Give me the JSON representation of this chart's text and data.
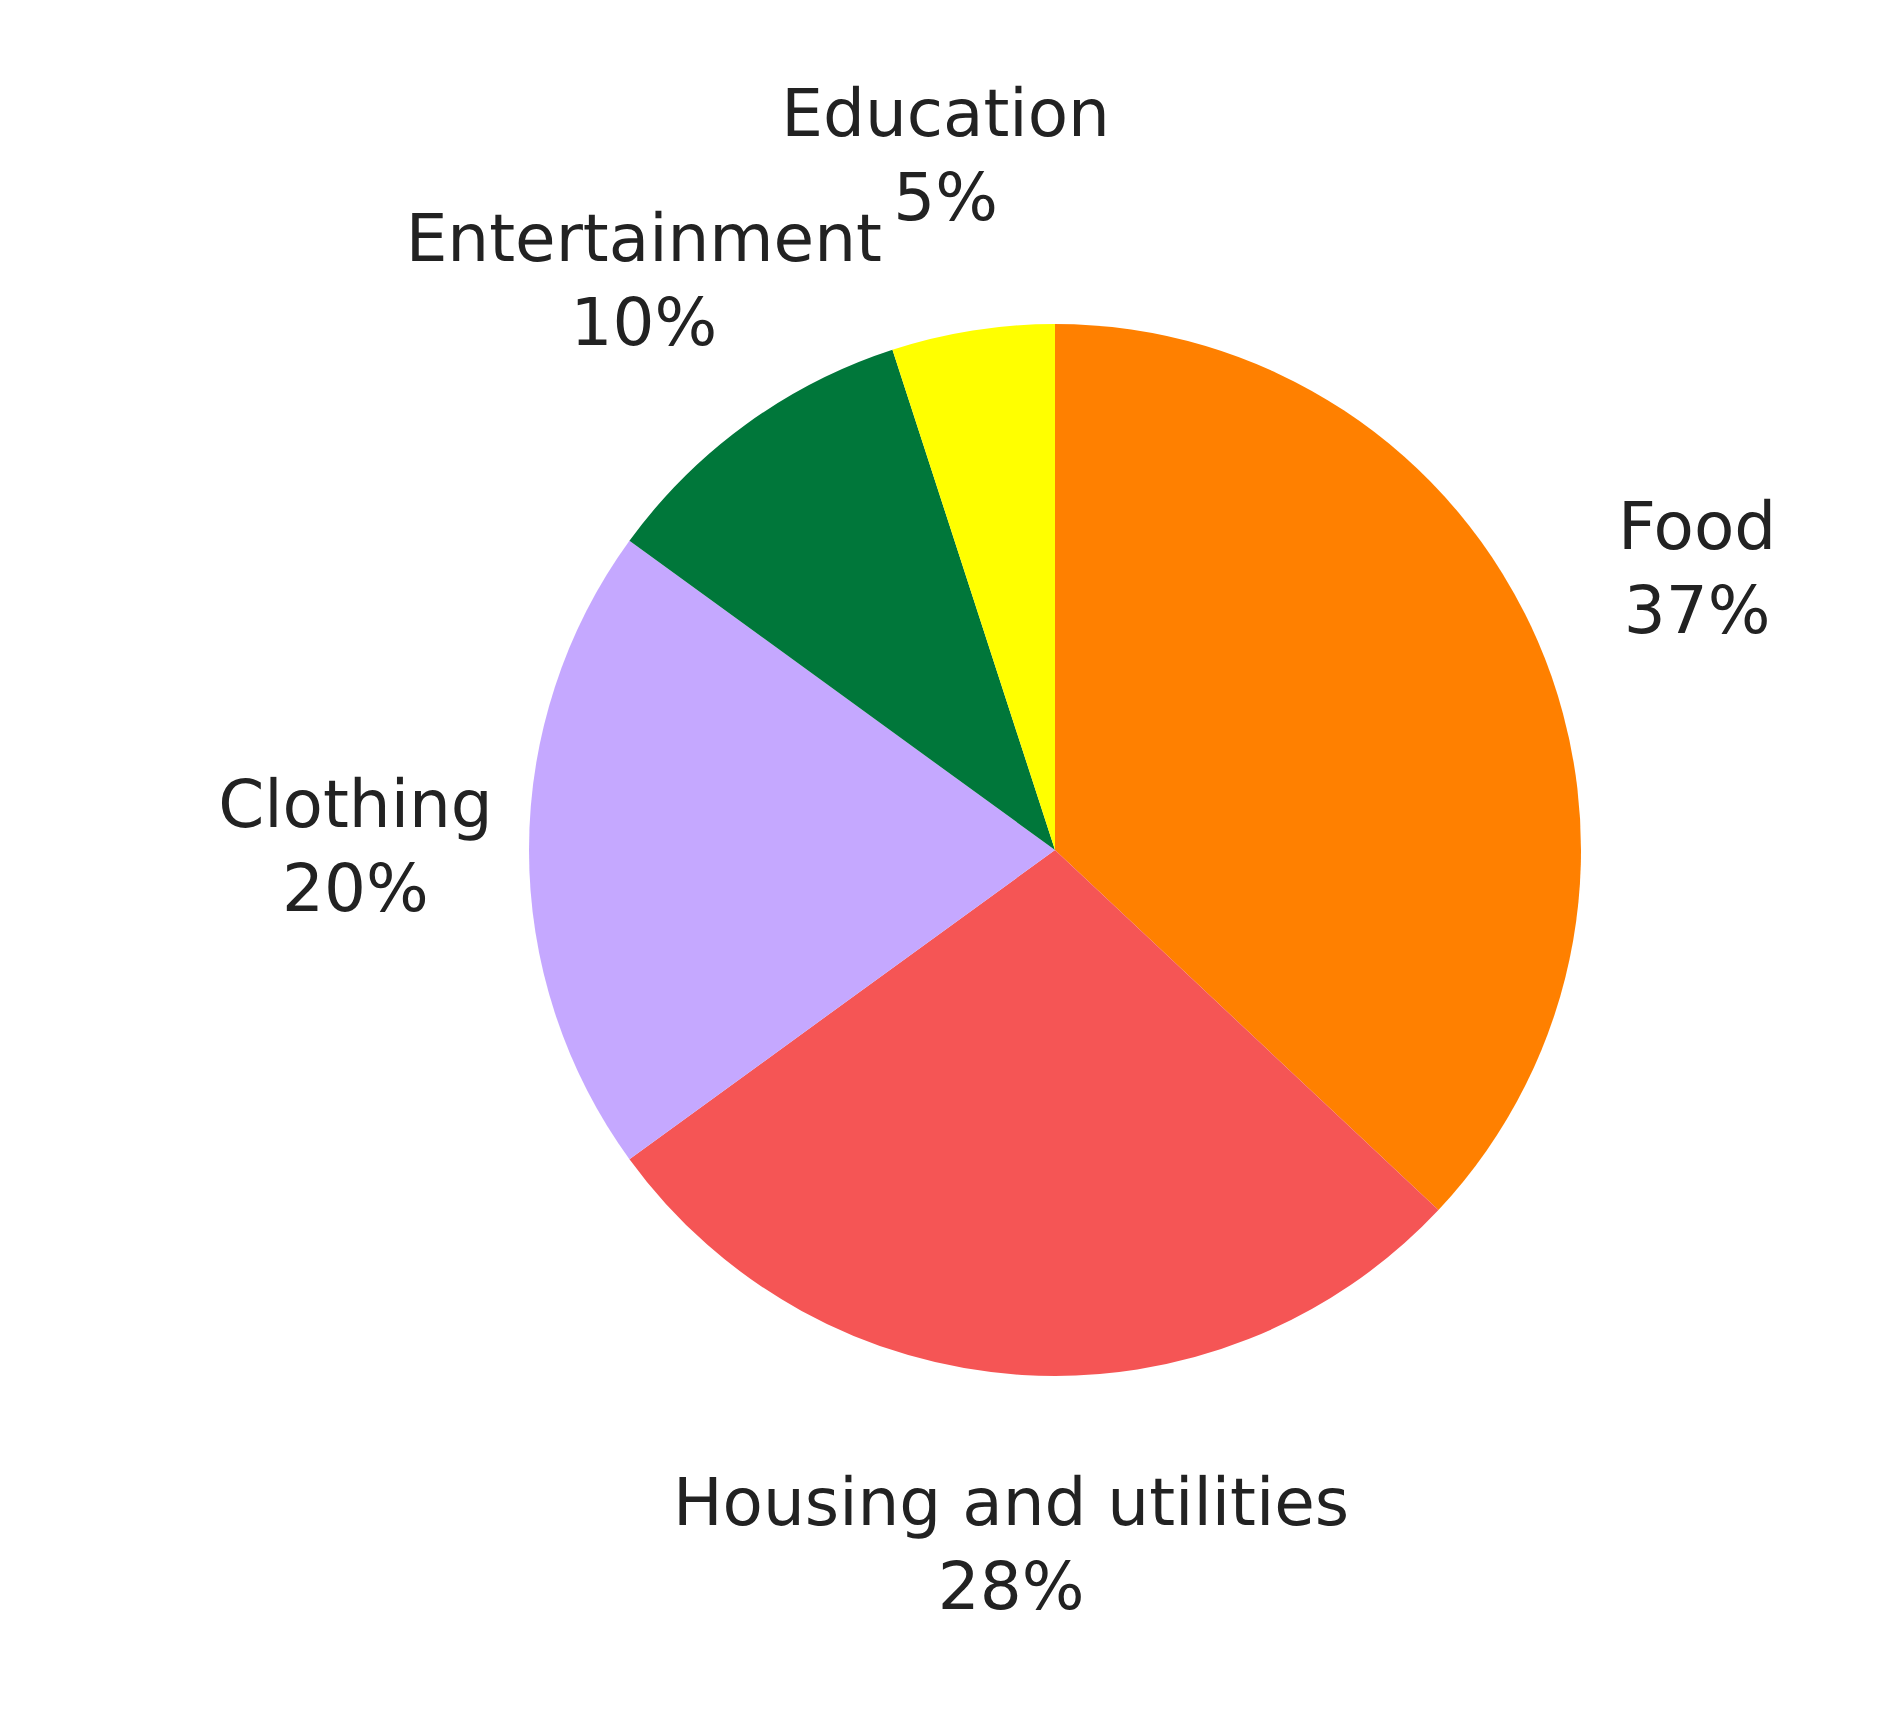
{
  "chart_data": {
    "type": "pie",
    "categories": [
      "Food",
      "Housing and utilities",
      "Clothing",
      "Entertainment",
      "Education"
    ],
    "values": [
      37,
      28,
      20,
      10,
      5
    ],
    "colors": [
      "#ff8000",
      "#f55555",
      "#c5a8ff",
      "#00773a",
      "#ffff00"
    ],
    "value_labels": [
      "37%",
      "28%",
      "20%",
      "10%",
      "5%"
    ],
    "legend": false
  }
}
